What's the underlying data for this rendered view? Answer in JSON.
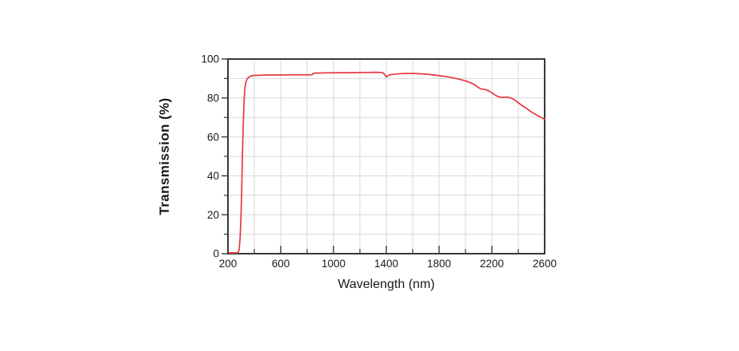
{
  "page": {
    "background": "#ffffff"
  },
  "chart_data": {
    "type": "line",
    "title": "",
    "xlabel": "Wavelength (nm)",
    "ylabel": "Transmission (%)",
    "xlim": [
      200,
      2600
    ],
    "ylim": [
      0,
      100
    ],
    "x_major_ticks": [
      200,
      600,
      1000,
      1400,
      1800,
      2200,
      2600
    ],
    "x_minor_ticks": [
      400,
      800,
      1200,
      1600,
      2000,
      2400
    ],
    "y_major_ticks": [
      0,
      20,
      40,
      60,
      80,
      100
    ],
    "y_minor_ticks": [
      10,
      30,
      50,
      70,
      90
    ],
    "grid": {
      "on": true,
      "x_interval": 200,
      "y_interval": 10,
      "color": "#d9d9d9"
    },
    "legend": "none",
    "colors": {
      "line": "#e73740",
      "axis": "#383838",
      "text": "#1a1a1a"
    },
    "series": [
      {
        "name": "transmission",
        "points": [
          [
            200,
            0.4
          ],
          [
            270,
            0.4
          ],
          [
            278,
            0.9
          ],
          [
            285,
            2
          ],
          [
            292,
            8
          ],
          [
            298,
            18
          ],
          [
            304,
            32
          ],
          [
            310,
            50
          ],
          [
            316,
            66
          ],
          [
            322,
            78
          ],
          [
            328,
            84.5
          ],
          [
            335,
            87.8
          ],
          [
            345,
            89.8
          ],
          [
            360,
            90.8
          ],
          [
            380,
            91.4
          ],
          [
            400,
            91.6
          ],
          [
            450,
            91.7
          ],
          [
            500,
            91.8
          ],
          [
            600,
            91.8
          ],
          [
            700,
            91.9
          ],
          [
            800,
            91.9
          ],
          [
            838,
            91.9
          ],
          [
            843,
            92.4
          ],
          [
            850,
            92.7
          ],
          [
            870,
            92.8
          ],
          [
            950,
            92.9
          ],
          [
            1050,
            93.0
          ],
          [
            1150,
            93.0
          ],
          [
            1250,
            93.1
          ],
          [
            1320,
            93.2
          ],
          [
            1360,
            93.1
          ],
          [
            1378,
            92.8
          ],
          [
            1390,
            91.8
          ],
          [
            1400,
            90.8
          ],
          [
            1408,
            91.2
          ],
          [
            1420,
            91.8
          ],
          [
            1440,
            92.1
          ],
          [
            1470,
            92.3
          ],
          [
            1510,
            92.5
          ],
          [
            1560,
            92.6
          ],
          [
            1610,
            92.6
          ],
          [
            1660,
            92.4
          ],
          [
            1710,
            92.2
          ],
          [
            1760,
            91.8
          ],
          [
            1810,
            91.4
          ],
          [
            1860,
            90.9
          ],
          [
            1910,
            90.3
          ],
          [
            1960,
            89.5
          ],
          [
            2000,
            88.8
          ],
          [
            2040,
            87.8
          ],
          [
            2070,
            86.8
          ],
          [
            2095,
            85.5
          ],
          [
            2115,
            84.7
          ],
          [
            2140,
            84.4
          ],
          [
            2160,
            84.1
          ],
          [
            2180,
            83.5
          ],
          [
            2200,
            82.7
          ],
          [
            2220,
            81.7
          ],
          [
            2240,
            80.9
          ],
          [
            2260,
            80.4
          ],
          [
            2280,
            80.3
          ],
          [
            2300,
            80.4
          ],
          [
            2320,
            80.4
          ],
          [
            2340,
            80.1
          ],
          [
            2360,
            79.5
          ],
          [
            2385,
            78.4
          ],
          [
            2410,
            77.1
          ],
          [
            2440,
            75.6
          ],
          [
            2470,
            74.3
          ],
          [
            2500,
            72.8
          ],
          [
            2540,
            71.2
          ],
          [
            2570,
            70.1
          ],
          [
            2600,
            69.2
          ]
        ]
      }
    ]
  }
}
